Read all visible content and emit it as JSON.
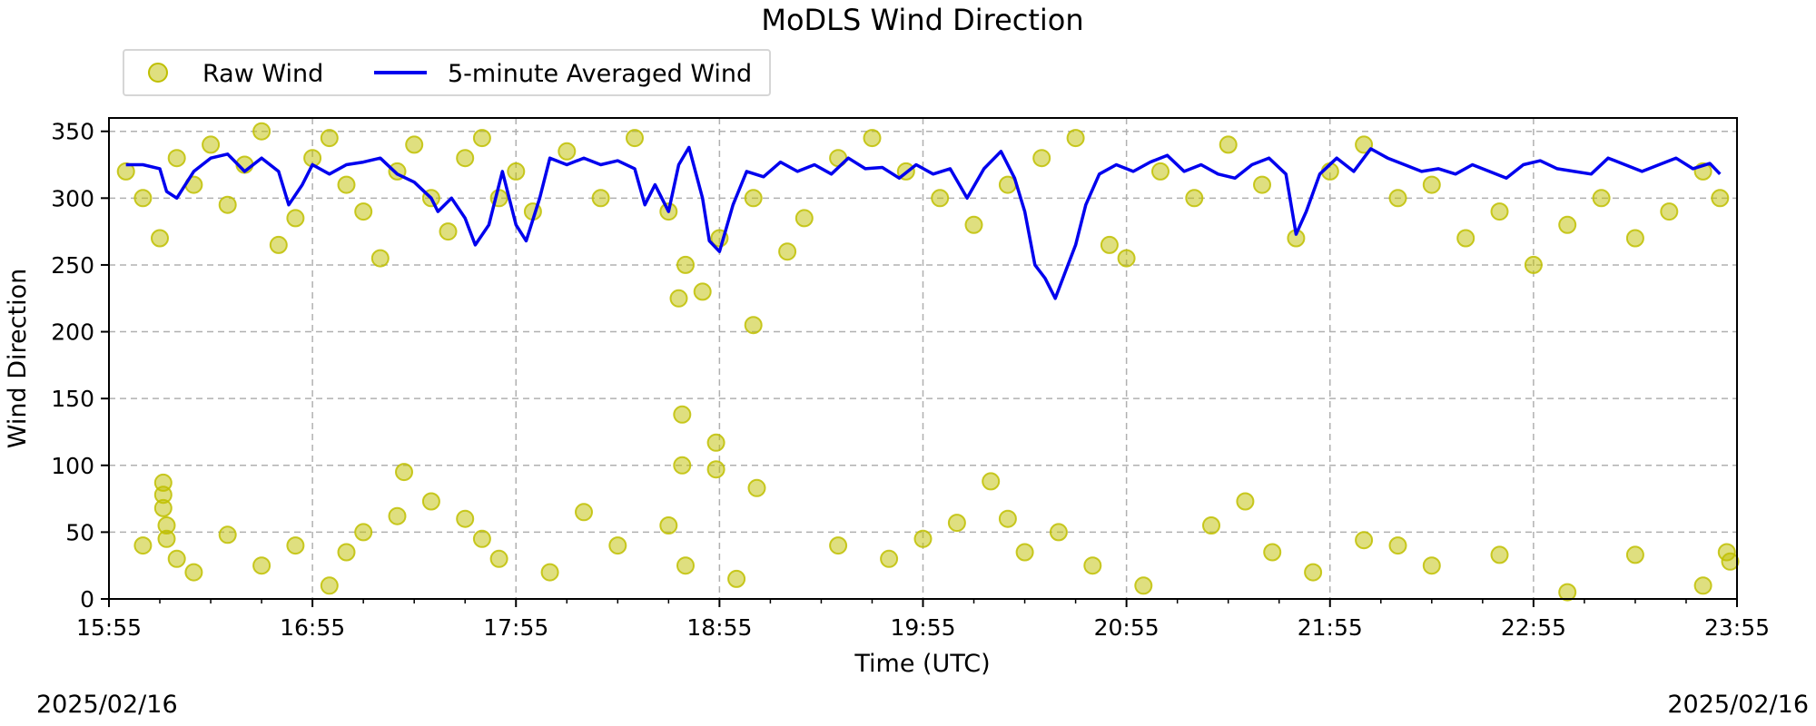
{
  "chart_data": {
    "type": "scatter",
    "title": "MoDLS Wind Direction",
    "xlabel": "Time (UTC)",
    "ylabel": "Wind Direction",
    "ylim": [
      0,
      360
    ],
    "xlim": [
      "15:55",
      "23:55"
    ],
    "x_tick_labels": [
      "15:55",
      "16:55",
      "17:55",
      "18:55",
      "19:55",
      "20:55",
      "21:55",
      "22:55",
      "23:55"
    ],
    "y_ticks": [
      0,
      50,
      100,
      150,
      200,
      250,
      300,
      350
    ],
    "y_tick_labels": [
      "0",
      "50",
      "100",
      "150",
      "200",
      "250",
      "300",
      "350"
    ],
    "date_start": "2025/02/16",
    "date_end": "2025/02/16",
    "grid": true,
    "legend_position": "top-left",
    "colors": {
      "raw": "#bfbf00",
      "averaged": "#0000ee"
    },
    "series": [
      {
        "name": "Raw Wind",
        "kind": "scatter",
        "points": [
          [
            "16:00",
            320
          ],
          [
            "16:05",
            300
          ],
          [
            "16:10",
            270
          ],
          [
            "16:15",
            330
          ],
          [
            "16:20",
            310
          ],
          [
            "16:25",
            340
          ],
          [
            "16:30",
            295
          ],
          [
            "16:35",
            325
          ],
          [
            "16:40",
            350
          ],
          [
            "16:45",
            265
          ],
          [
            "16:50",
            285
          ],
          [
            "16:55",
            330
          ],
          [
            "17:00",
            345
          ],
          [
            "17:05",
            310
          ],
          [
            "17:10",
            290
          ],
          [
            "17:15",
            255
          ],
          [
            "17:20",
            320
          ],
          [
            "17:25",
            340
          ],
          [
            "17:30",
            300
          ],
          [
            "17:35",
            275
          ],
          [
            "17:40",
            330
          ],
          [
            "17:45",
            345
          ],
          [
            "17:50",
            300
          ],
          [
            "17:55",
            320
          ],
          [
            "18:00",
            290
          ],
          [
            "18:10",
            335
          ],
          [
            "18:20",
            300
          ],
          [
            "18:30",
            345
          ],
          [
            "18:40",
            290
          ],
          [
            "18:50",
            230
          ],
          [
            "18:45",
            250
          ],
          [
            "18:55",
            270
          ],
          [
            "19:05",
            300
          ],
          [
            "19:15",
            260
          ],
          [
            "19:20",
            285
          ],
          [
            "19:30",
            330
          ],
          [
            "19:40",
            345
          ],
          [
            "19:50",
            320
          ],
          [
            "20:00",
            300
          ],
          [
            "20:10",
            280
          ],
          [
            "20:20",
            310
          ],
          [
            "20:30",
            330
          ],
          [
            "20:40",
            345
          ],
          [
            "20:50",
            265
          ],
          [
            "20:55",
            255
          ],
          [
            "21:05",
            320
          ],
          [
            "21:15",
            300
          ],
          [
            "21:25",
            340
          ],
          [
            "21:35",
            310
          ],
          [
            "21:45",
            270
          ],
          [
            "21:55",
            320
          ],
          [
            "22:05",
            340
          ],
          [
            "22:15",
            300
          ],
          [
            "22:25",
            310
          ],
          [
            "22:35",
            270
          ],
          [
            "22:45",
            290
          ],
          [
            "22:55",
            250
          ],
          [
            "23:05",
            280
          ],
          [
            "23:15",
            300
          ],
          [
            "23:25",
            270
          ],
          [
            "23:35",
            290
          ],
          [
            "23:45",
            320
          ],
          [
            "23:50",
            300
          ],
          [
            "18:43",
            225
          ],
          [
            "18:44",
            138
          ],
          [
            "18:44",
            100
          ],
          [
            "18:54",
            117
          ],
          [
            "18:54",
            97
          ],
          [
            "19:05",
            205
          ],
          [
            "19:06",
            83
          ],
          [
            "17:22",
            95
          ],
          [
            "16:11",
            87
          ],
          [
            "16:11",
            78
          ],
          [
            "16:11",
            68
          ],
          [
            "16:05",
            40
          ],
          [
            "16:12",
            55
          ],
          [
            "16:12",
            45
          ],
          [
            "16:15",
            30
          ],
          [
            "16:20",
            20
          ],
          [
            "16:30",
            48
          ],
          [
            "16:40",
            25
          ],
          [
            "16:50",
            40
          ],
          [
            "17:00",
            10
          ],
          [
            "17:05",
            35
          ],
          [
            "17:10",
            50
          ],
          [
            "17:20",
            62
          ],
          [
            "17:30",
            73
          ],
          [
            "17:40",
            60
          ],
          [
            "17:45",
            45
          ],
          [
            "17:50",
            30
          ],
          [
            "18:05",
            20
          ],
          [
            "18:15",
            65
          ],
          [
            "18:25",
            40
          ],
          [
            "18:40",
            55
          ],
          [
            "18:45",
            25
          ],
          [
            "19:00",
            15
          ],
          [
            "19:30",
            40
          ],
          [
            "19:45",
            30
          ],
          [
            "19:55",
            45
          ],
          [
            "20:05",
            57
          ],
          [
            "20:15",
            88
          ],
          [
            "20:20",
            60
          ],
          [
            "20:25",
            35
          ],
          [
            "20:35",
            50
          ],
          [
            "20:45",
            25
          ],
          [
            "21:00",
            10
          ],
          [
            "21:20",
            55
          ],
          [
            "21:30",
            73
          ],
          [
            "21:38",
            35
          ],
          [
            "21:50",
            20
          ],
          [
            "22:05",
            44
          ],
          [
            "22:15",
            40
          ],
          [
            "22:25",
            25
          ],
          [
            "22:45",
            33
          ],
          [
            "23:05",
            5
          ],
          [
            "23:25",
            33
          ],
          [
            "23:45",
            10
          ],
          [
            "23:52",
            35
          ],
          [
            "23:53",
            28
          ]
        ]
      },
      {
        "name": "5-minute Averaged Wind",
        "kind": "line",
        "points": [
          [
            "16:00",
            325
          ],
          [
            "16:05",
            325
          ],
          [
            "16:10",
            322
          ],
          [
            "16:12",
            305
          ],
          [
            "16:15",
            300
          ],
          [
            "16:20",
            320
          ],
          [
            "16:25",
            330
          ],
          [
            "16:30",
            333
          ],
          [
            "16:35",
            320
          ],
          [
            "16:40",
            330
          ],
          [
            "16:45",
            320
          ],
          [
            "16:48",
            295
          ],
          [
            "16:52",
            310
          ],
          [
            "16:55",
            325
          ],
          [
            "17:00",
            318
          ],
          [
            "17:05",
            325
          ],
          [
            "17:10",
            327
          ],
          [
            "17:15",
            330
          ],
          [
            "17:20",
            318
          ],
          [
            "17:25",
            312
          ],
          [
            "17:30",
            300
          ],
          [
            "17:32",
            290
          ],
          [
            "17:36",
            300
          ],
          [
            "17:40",
            285
          ],
          [
            "17:43",
            265
          ],
          [
            "17:47",
            280
          ],
          [
            "17:51",
            320
          ],
          [
            "17:55",
            280
          ],
          [
            "17:58",
            268
          ],
          [
            "18:02",
            300
          ],
          [
            "18:05",
            330
          ],
          [
            "18:10",
            325
          ],
          [
            "18:15",
            330
          ],
          [
            "18:20",
            325
          ],
          [
            "18:25",
            328
          ],
          [
            "18:30",
            322
          ],
          [
            "18:33",
            295
          ],
          [
            "18:36",
            310
          ],
          [
            "18:40",
            290
          ],
          [
            "18:43",
            325
          ],
          [
            "18:46",
            338
          ],
          [
            "18:50",
            300
          ],
          [
            "18:52",
            268
          ],
          [
            "18:55",
            260
          ],
          [
            "18:59",
            295
          ],
          [
            "19:03",
            320
          ],
          [
            "19:08",
            316
          ],
          [
            "19:13",
            327
          ],
          [
            "19:18",
            320
          ],
          [
            "19:23",
            325
          ],
          [
            "19:28",
            318
          ],
          [
            "19:33",
            330
          ],
          [
            "19:38",
            322
          ],
          [
            "19:43",
            323
          ],
          [
            "19:48",
            315
          ],
          [
            "19:53",
            325
          ],
          [
            "19:58",
            318
          ],
          [
            "20:03",
            322
          ],
          [
            "20:08",
            300
          ],
          [
            "20:13",
            322
          ],
          [
            "20:18",
            335
          ],
          [
            "20:22",
            315
          ],
          [
            "20:25",
            290
          ],
          [
            "20:28",
            250
          ],
          [
            "20:31",
            240
          ],
          [
            "20:34",
            225
          ],
          [
            "20:37",
            245
          ],
          [
            "20:40",
            265
          ],
          [
            "20:43",
            295
          ],
          [
            "20:47",
            318
          ],
          [
            "20:52",
            325
          ],
          [
            "20:57",
            320
          ],
          [
            "21:02",
            327
          ],
          [
            "21:07",
            332
          ],
          [
            "21:12",
            320
          ],
          [
            "21:17",
            325
          ],
          [
            "21:22",
            318
          ],
          [
            "21:27",
            315
          ],
          [
            "21:32",
            325
          ],
          [
            "21:37",
            330
          ],
          [
            "21:42",
            318
          ],
          [
            "21:45",
            273
          ],
          [
            "21:48",
            290
          ],
          [
            "21:52",
            318
          ],
          [
            "21:57",
            330
          ],
          [
            "22:02",
            320
          ],
          [
            "22:07",
            337
          ],
          [
            "22:12",
            330
          ],
          [
            "22:17",
            325
          ],
          [
            "22:22",
            320
          ],
          [
            "22:27",
            322
          ],
          [
            "22:32",
            318
          ],
          [
            "22:37",
            325
          ],
          [
            "22:42",
            320
          ],
          [
            "22:47",
            315
          ],
          [
            "22:52",
            325
          ],
          [
            "22:57",
            328
          ],
          [
            "23:02",
            322
          ],
          [
            "23:07",
            320
          ],
          [
            "23:12",
            318
          ],
          [
            "23:17",
            330
          ],
          [
            "23:22",
            325
          ],
          [
            "23:27",
            320
          ],
          [
            "23:32",
            325
          ],
          [
            "23:37",
            330
          ],
          [
            "23:42",
            322
          ],
          [
            "23:47",
            326
          ],
          [
            "23:50",
            318
          ]
        ]
      }
    ]
  }
}
